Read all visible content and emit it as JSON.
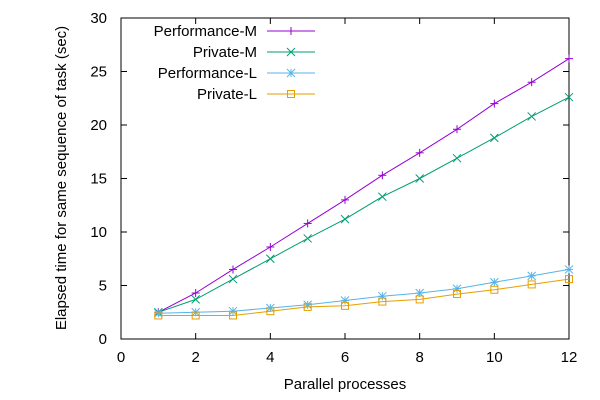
{
  "chart_data": {
    "type": "line",
    "title": "",
    "xlabel": "Parallel processes",
    "ylabel": "Elapsed time for same sequence of task (sec)",
    "xlim": [
      0,
      12
    ],
    "ylim": [
      0,
      30
    ],
    "xticks": [
      0,
      2,
      4,
      6,
      8,
      10,
      12
    ],
    "yticks": [
      0,
      5,
      10,
      15,
      20,
      25,
      30
    ],
    "grid": false,
    "legend_position": "top-left",
    "series": [
      {
        "name": "Performance-M",
        "color": "#9400d3",
        "marker": "plus",
        "x": [
          1,
          2,
          3,
          4,
          5,
          6,
          7,
          8,
          9,
          10,
          11,
          12
        ],
        "y": [
          2.5,
          4.3,
          6.5,
          8.6,
          10.8,
          13.0,
          15.3,
          17.4,
          19.6,
          22.0,
          24.0,
          26.2
        ]
      },
      {
        "name": "Private-M",
        "color": "#009e73",
        "marker": "cross",
        "x": [
          1,
          2,
          3,
          4,
          5,
          6,
          7,
          8,
          9,
          10,
          11,
          12
        ],
        "y": [
          2.5,
          3.7,
          5.6,
          7.5,
          9.4,
          11.2,
          13.3,
          15.0,
          16.9,
          18.8,
          20.8,
          22.6
        ]
      },
      {
        "name": "Performance-L",
        "color": "#56b4e9",
        "marker": "star",
        "x": [
          1,
          2,
          3,
          4,
          5,
          6,
          7,
          8,
          9,
          10,
          11,
          12
        ],
        "y": [
          2.4,
          2.5,
          2.6,
          2.9,
          3.2,
          3.6,
          4.0,
          4.3,
          4.7,
          5.3,
          5.9,
          6.5
        ]
      },
      {
        "name": "Private-L",
        "color": "#e69f00",
        "marker": "square",
        "x": [
          1,
          2,
          3,
          4,
          5,
          6,
          7,
          8,
          9,
          10,
          11,
          12
        ],
        "y": [
          2.2,
          2.2,
          2.2,
          2.6,
          3.0,
          3.1,
          3.5,
          3.7,
          4.2,
          4.6,
          5.1,
          5.6
        ]
      }
    ]
  }
}
